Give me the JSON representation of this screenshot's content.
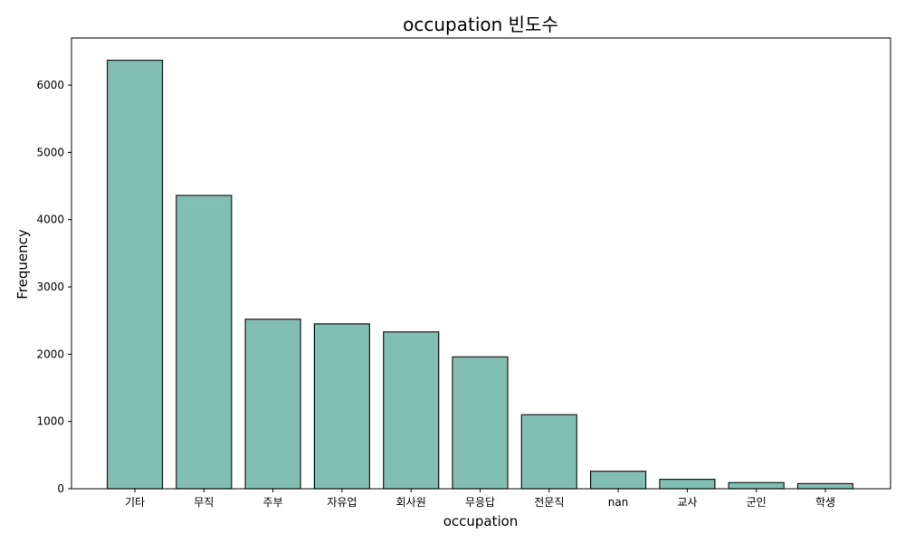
{
  "chart_data": {
    "type": "bar",
    "title": "occupation 빈도수",
    "xlabel": "occupation",
    "ylabel": "Frequency",
    "categories": [
      "기타",
      "무직",
      "주부",
      "자유업",
      "회사원",
      "무응답",
      "전문직",
      "nan",
      "교사",
      "군인",
      "학생"
    ],
    "values": [
      6370,
      4360,
      2520,
      2450,
      2330,
      1960,
      1100,
      260,
      140,
      90,
      75
    ],
    "ylim": [
      0,
      6700
    ],
    "yticks": [
      0,
      1000,
      2000,
      3000,
      4000,
      5000,
      6000
    ],
    "grid": false,
    "legend": "none",
    "bar_color": "#82bfb2",
    "bar_edge_color": "#1a1a1a"
  }
}
